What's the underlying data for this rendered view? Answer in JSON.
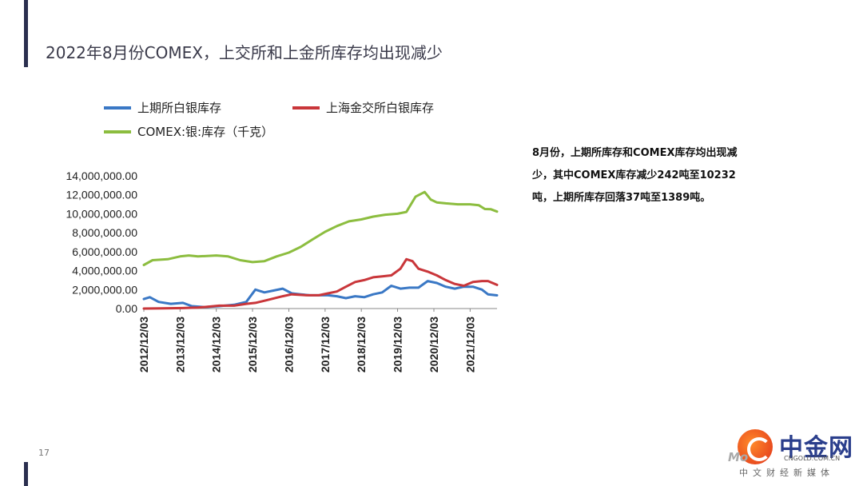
{
  "slide": {
    "title": "2022年8月份COMEX，上交所和上金所库存均出现减少",
    "page_number": "17"
  },
  "legend": [
    {
      "label": "上期所白银库存",
      "color": "#3a78c5"
    },
    {
      "label": "上海金交所白银库存",
      "color": "#c9363a"
    },
    {
      "label": "COMEX:银:库存（千克）",
      "color": "#8cbd3f"
    }
  ],
  "note": {
    "lines": [
      "8月份，上期所库存和COMEX库存均出现减",
      "少，其中COMEX库存减少242吨至10232",
      "吨，上期所库存回落37吨至1389吨。"
    ]
  },
  "logo": {
    "name": "中金网",
    "mark": "Mo",
    "domain": "CNGOLD.COM.CN",
    "tagline": "中文财经新媒体"
  },
  "chart_data": {
    "type": "line",
    "ylim": [
      0,
      14000000
    ],
    "yticks": [
      "0.00",
      "2,000,000.00",
      "4,000,000.00",
      "6,000,000.00",
      "8,000,000.00",
      "10,000,000.00",
      "12,000,000.00",
      "14,000,000.00"
    ],
    "xlim": [
      "2012/12/03",
      "2022/08/31"
    ],
    "xticks": [
      "2012/12/03",
      "2013/12/03",
      "2014/12/03",
      "2015/12/03",
      "2016/12/03",
      "2017/12/03",
      "2018/12/03",
      "2019/12/03",
      "2020/12/03",
      "2021/12/03"
    ],
    "series": [
      {
        "name": "上期所白银库存",
        "color": "#3a78c5",
        "points": [
          [
            "2012/12/03",
            1000000
          ],
          [
            "2013/02/01",
            1200000
          ],
          [
            "2013/05/01",
            700000
          ],
          [
            "2013/09/01",
            500000
          ],
          [
            "2014/01/01",
            600000
          ],
          [
            "2014/04/01",
            250000
          ],
          [
            "2014/08/01",
            150000
          ],
          [
            "2015/01/01",
            250000
          ],
          [
            "2015/06/01",
            400000
          ],
          [
            "2015/10/01",
            700000
          ],
          [
            "2016/01/01",
            2000000
          ],
          [
            "2016/04/01",
            1700000
          ],
          [
            "2016/07/01",
            1900000
          ],
          [
            "2016/10/01",
            2100000
          ],
          [
            "2017/01/01",
            1600000
          ],
          [
            "2017/04/01",
            1500000
          ],
          [
            "2017/07/01",
            1400000
          ],
          [
            "2017/10/01",
            1400000
          ],
          [
            "2018/01/01",
            1400000
          ],
          [
            "2018/04/01",
            1300000
          ],
          [
            "2018/07/01",
            1100000
          ],
          [
            "2018/10/01",
            1300000
          ],
          [
            "2019/01/01",
            1200000
          ],
          [
            "2019/04/01",
            1500000
          ],
          [
            "2019/07/01",
            1700000
          ],
          [
            "2019/10/01",
            2400000
          ],
          [
            "2020/01/01",
            2100000
          ],
          [
            "2020/04/01",
            2200000
          ],
          [
            "2020/07/01",
            2200000
          ],
          [
            "2020/10/01",
            2900000
          ],
          [
            "2021/01/01",
            2700000
          ],
          [
            "2021/04/01",
            2300000
          ],
          [
            "2021/07/01",
            2100000
          ],
          [
            "2021/10/01",
            2300000
          ],
          [
            "2022/01/01",
            2300000
          ],
          [
            "2022/04/01",
            2000000
          ],
          [
            "2022/06/01",
            1500000
          ],
          [
            "2022/08/31",
            1389000
          ]
        ]
      },
      {
        "name": "上海金交所白银库存",
        "color": "#c9363a",
        "points": [
          [
            "2012/12/03",
            0
          ],
          [
            "2013/06/01",
            20000
          ],
          [
            "2014/01/01",
            50000
          ],
          [
            "2014/06/01",
            100000
          ],
          [
            "2015/01/01",
            300000
          ],
          [
            "2015/06/01",
            300000
          ],
          [
            "2015/10/01",
            500000
          ],
          [
            "2016/01/01",
            600000
          ],
          [
            "2016/05/01",
            900000
          ],
          [
            "2016/10/01",
            1300000
          ],
          [
            "2017/01/01",
            1500000
          ],
          [
            "2017/06/01",
            1400000
          ],
          [
            "2017/10/01",
            1400000
          ],
          [
            "2018/01/01",
            1600000
          ],
          [
            "2018/04/01",
            1800000
          ],
          [
            "2018/07/01",
            2300000
          ],
          [
            "2018/10/01",
            2800000
          ],
          [
            "2019/01/01",
            3000000
          ],
          [
            "2019/04/01",
            3300000
          ],
          [
            "2019/07/01",
            3400000
          ],
          [
            "2019/10/01",
            3500000
          ],
          [
            "2020/01/01",
            4200000
          ],
          [
            "2020/03/01",
            5200000
          ],
          [
            "2020/05/01",
            5000000
          ],
          [
            "2020/07/01",
            4200000
          ],
          [
            "2020/10/01",
            3900000
          ],
          [
            "2021/01/01",
            3500000
          ],
          [
            "2021/04/01",
            3000000
          ],
          [
            "2021/07/01",
            2600000
          ],
          [
            "2021/10/01",
            2400000
          ],
          [
            "2022/01/01",
            2800000
          ],
          [
            "2022/04/01",
            2900000
          ],
          [
            "2022/06/01",
            2900000
          ],
          [
            "2022/08/31",
            2500000
          ]
        ]
      },
      {
        "name": "COMEX:银:库存（千克）",
        "color": "#8cbd3f",
        "points": [
          [
            "2012/12/03",
            4600000
          ],
          [
            "2013/03/01",
            5100000
          ],
          [
            "2013/08/01",
            5200000
          ],
          [
            "2013/12/03",
            5500000
          ],
          [
            "2014/03/01",
            5600000
          ],
          [
            "2014/06/01",
            5500000
          ],
          [
            "2014/12/03",
            5600000
          ],
          [
            "2015/04/01",
            5500000
          ],
          [
            "2015/08/01",
            5100000
          ],
          [
            "2015/12/03",
            4900000
          ],
          [
            "2016/04/01",
            5000000
          ],
          [
            "2016/08/01",
            5500000
          ],
          [
            "2016/12/03",
            5900000
          ],
          [
            "2017/04/01",
            6500000
          ],
          [
            "2017/08/01",
            7300000
          ],
          [
            "2017/12/03",
            8100000
          ],
          [
            "2018/04/01",
            8700000
          ],
          [
            "2018/08/01",
            9200000
          ],
          [
            "2018/12/03",
            9400000
          ],
          [
            "2019/04/01",
            9700000
          ],
          [
            "2019/08/01",
            9900000
          ],
          [
            "2019/12/03",
            10000000
          ],
          [
            "2020/03/01",
            10200000
          ],
          [
            "2020/06/01",
            11800000
          ],
          [
            "2020/09/01",
            12300000
          ],
          [
            "2020/11/01",
            11500000
          ],
          [
            "2021/01/01",
            11200000
          ],
          [
            "2021/04/01",
            11100000
          ],
          [
            "2021/08/01",
            11000000
          ],
          [
            "2021/12/03",
            11000000
          ],
          [
            "2022/03/01",
            10900000
          ],
          [
            "2022/05/01",
            10500000
          ],
          [
            "2022/07/01",
            10474000
          ],
          [
            "2022/08/31",
            10232000
          ]
        ]
      }
    ]
  }
}
